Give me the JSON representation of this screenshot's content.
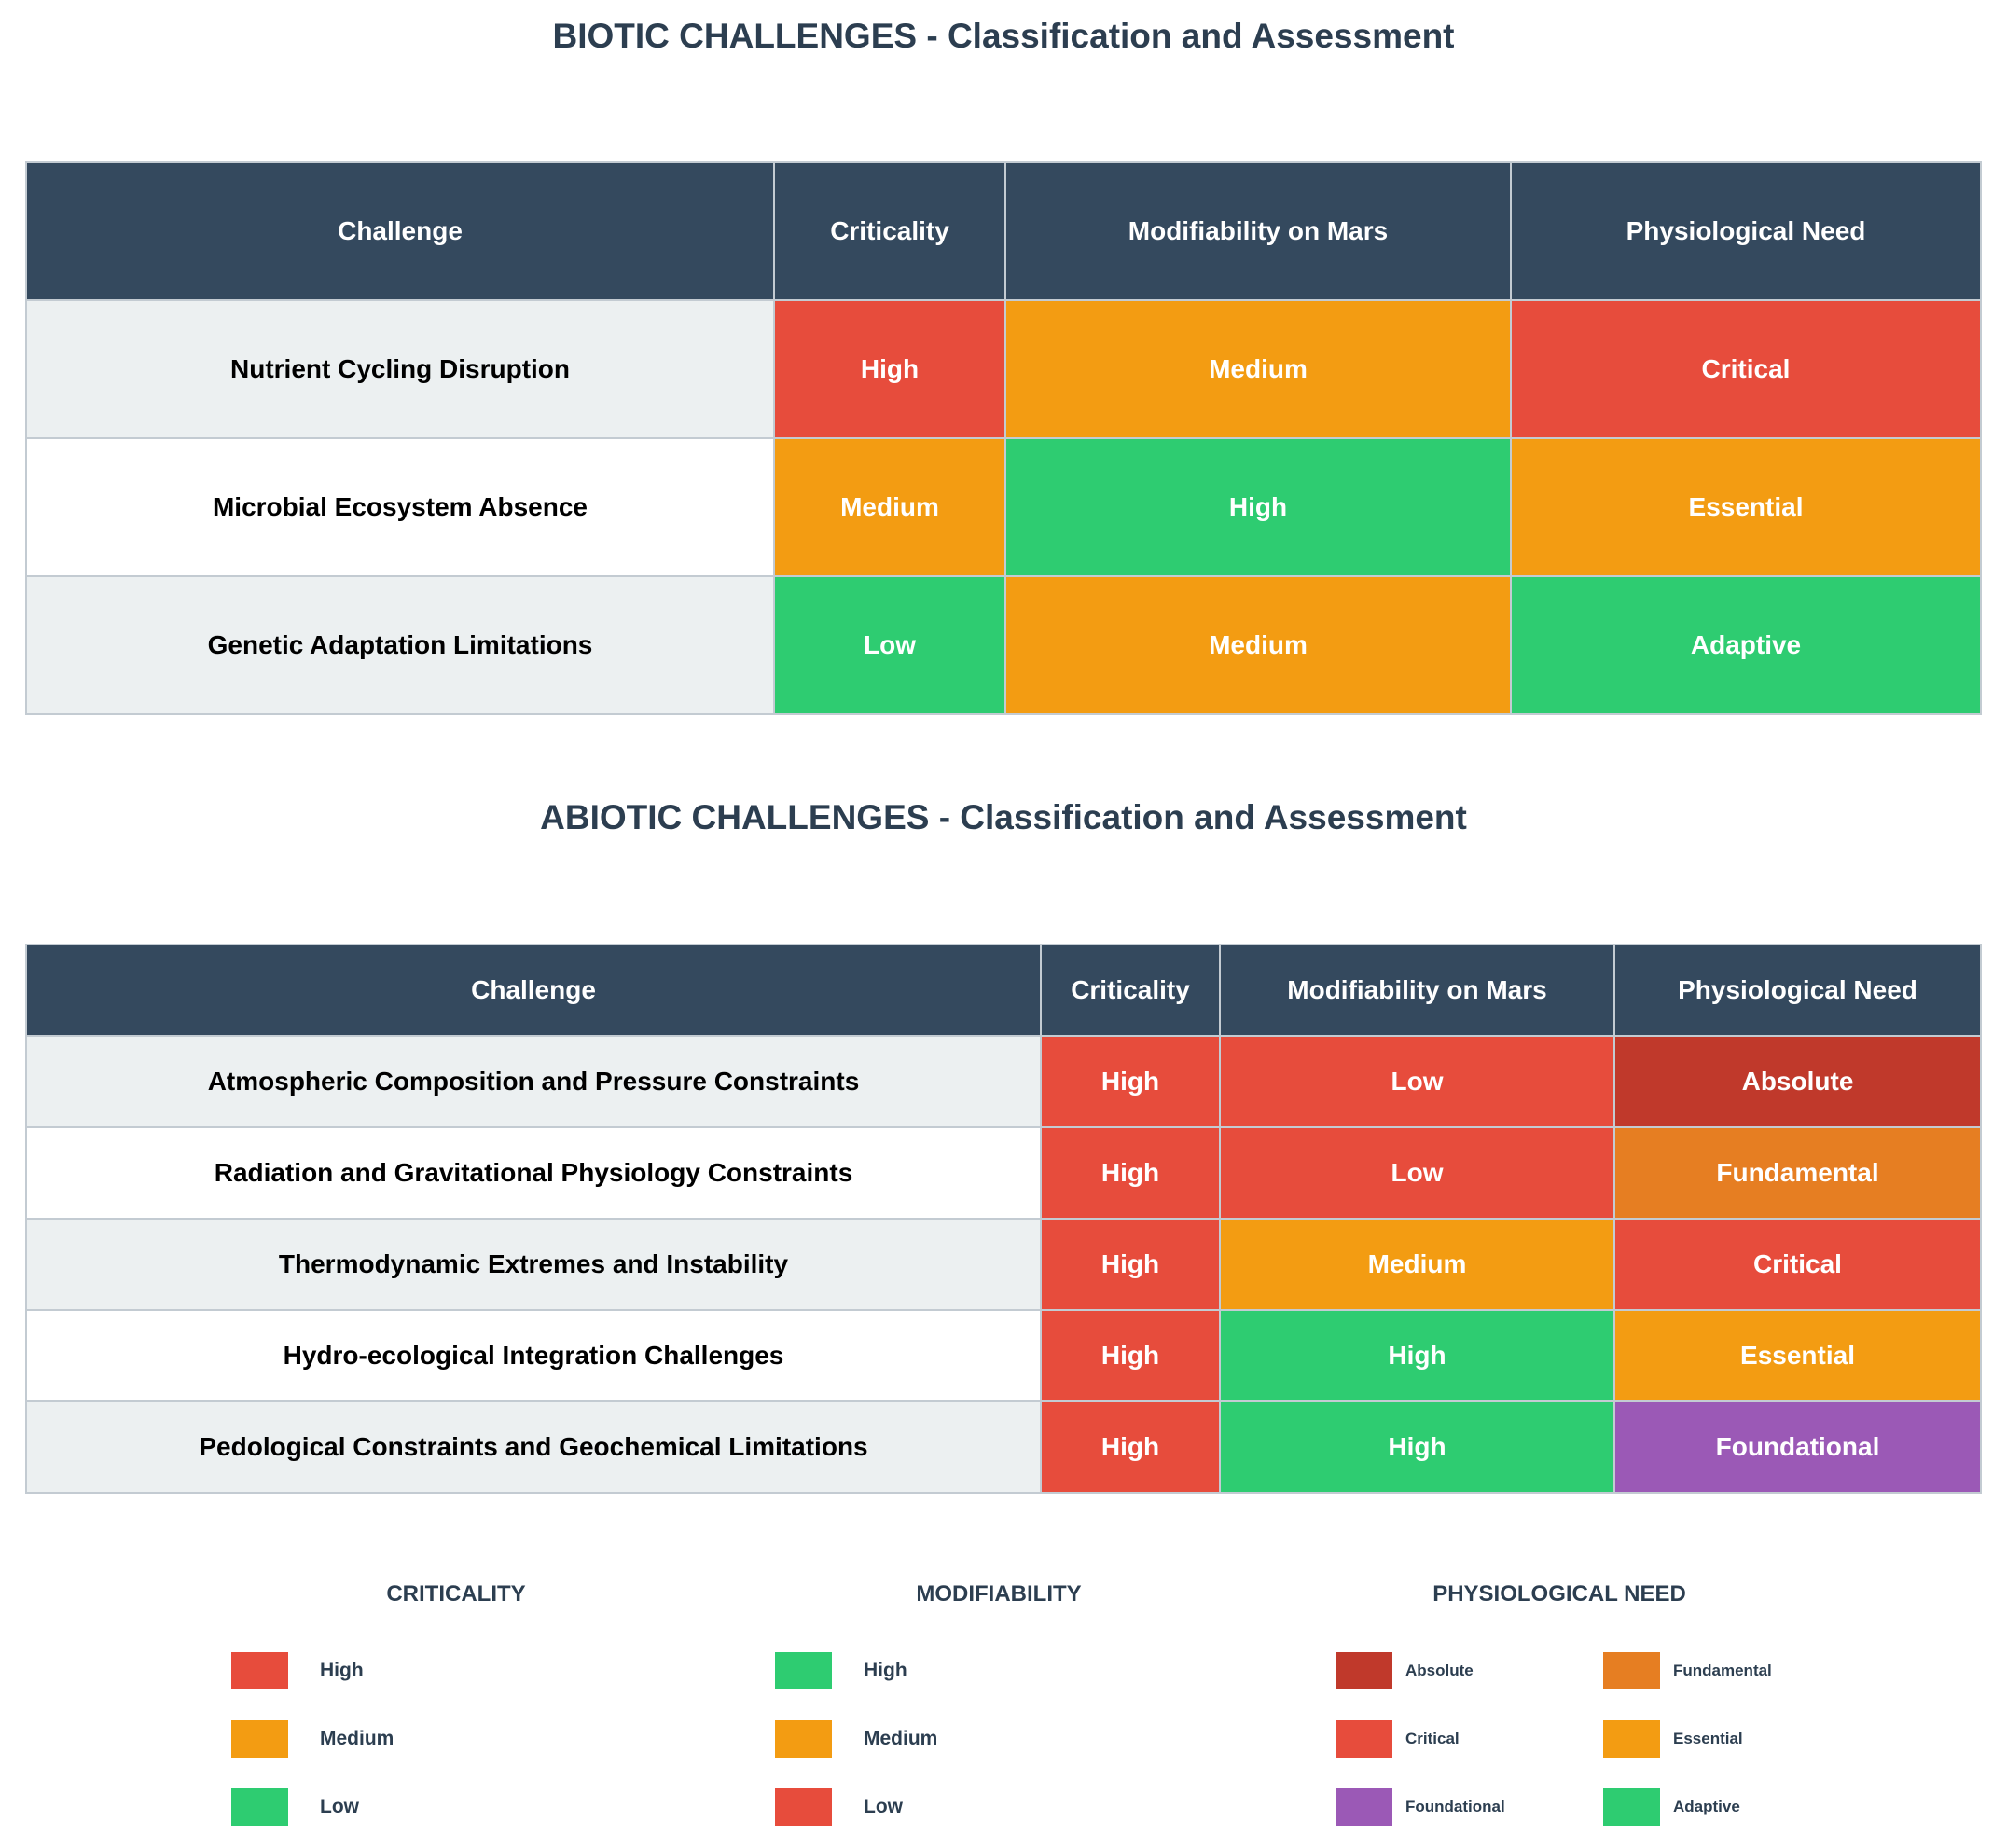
{
  "colors": {
    "red": "#e74c3c",
    "orange": "#f39c12",
    "green": "#2ecc71",
    "dark_red": "#c0392b",
    "dark_orange": "#e67e22",
    "purple": "#9b59b6",
    "header": "#34495e",
    "title": "#2c3e50"
  },
  "chart_data": [
    {
      "type": "table",
      "title": "BIOTIC CHALLENGES - Classification and Assessment",
      "columns": [
        "Challenge",
        "Criticality",
        "Modifiability on Mars",
        "Physiological Need"
      ],
      "rows": [
        [
          "Nutrient Cycling Disruption",
          "High",
          "Medium",
          "Critical"
        ],
        [
          "Microbial Ecosystem Absence",
          "Medium",
          "High",
          "Essential"
        ],
        [
          "Genetic Adaptation Limitations",
          "Low",
          "Medium",
          "Adaptive"
        ]
      ],
      "cell_colors": [
        [
          "#e74c3c",
          "#f39c12",
          "#e74c3c"
        ],
        [
          "#f39c12",
          "#2ecc71",
          "#f39c12"
        ],
        [
          "#2ecc71",
          "#f39c12",
          "#2ecc71"
        ]
      ]
    },
    {
      "type": "table",
      "title": "ABIOTIC CHALLENGES - Classification and Assessment",
      "columns": [
        "Challenge",
        "Criticality",
        "Modifiability on Mars",
        "Physiological Need"
      ],
      "rows": [
        [
          "Atmospheric Composition and Pressure Constraints",
          "High",
          "Low",
          "Absolute"
        ],
        [
          "Radiation and Gravitational Physiology Constraints",
          "High",
          "Low",
          "Fundamental"
        ],
        [
          "Thermodynamic Extremes and Instability",
          "High",
          "Medium",
          "Critical"
        ],
        [
          "Hydro-ecological Integration Challenges",
          "High",
          "High",
          "Essential"
        ],
        [
          "Pedological Constraints and Geochemical Limitations",
          "High",
          "High",
          "Foundational"
        ]
      ],
      "cell_colors": [
        [
          "#e74c3c",
          "#e74c3c",
          "#c0392b"
        ],
        [
          "#e74c3c",
          "#e74c3c",
          "#e67e22"
        ],
        [
          "#e74c3c",
          "#f39c12",
          "#e74c3c"
        ],
        [
          "#e74c3c",
          "#2ecc71",
          "#f39c12"
        ],
        [
          "#e74c3c",
          "#2ecc71",
          "#9b59b6"
        ]
      ]
    }
  ],
  "legends": [
    {
      "title": "CRITICALITY",
      "items": [
        {
          "label": "High",
          "color": "#e74c3c"
        },
        {
          "label": "Medium",
          "color": "#f39c12"
        },
        {
          "label": "Low",
          "color": "#2ecc71"
        }
      ]
    },
    {
      "title": "MODIFIABILITY",
      "items": [
        {
          "label": "High",
          "color": "#2ecc71"
        },
        {
          "label": "Medium",
          "color": "#f39c12"
        },
        {
          "label": "Low",
          "color": "#e74c3c"
        }
      ]
    },
    {
      "title": "PHYSIOLOGICAL NEED",
      "items": [
        {
          "label": "Absolute",
          "color": "#c0392b"
        },
        {
          "label": "Fundamental",
          "color": "#e67e22"
        },
        {
          "label": "Critical",
          "color": "#e74c3c"
        },
        {
          "label": "Essential",
          "color": "#f39c12"
        },
        {
          "label": "Foundational",
          "color": "#9b59b6"
        },
        {
          "label": "Adaptive",
          "color": "#2ecc71"
        }
      ]
    }
  ]
}
